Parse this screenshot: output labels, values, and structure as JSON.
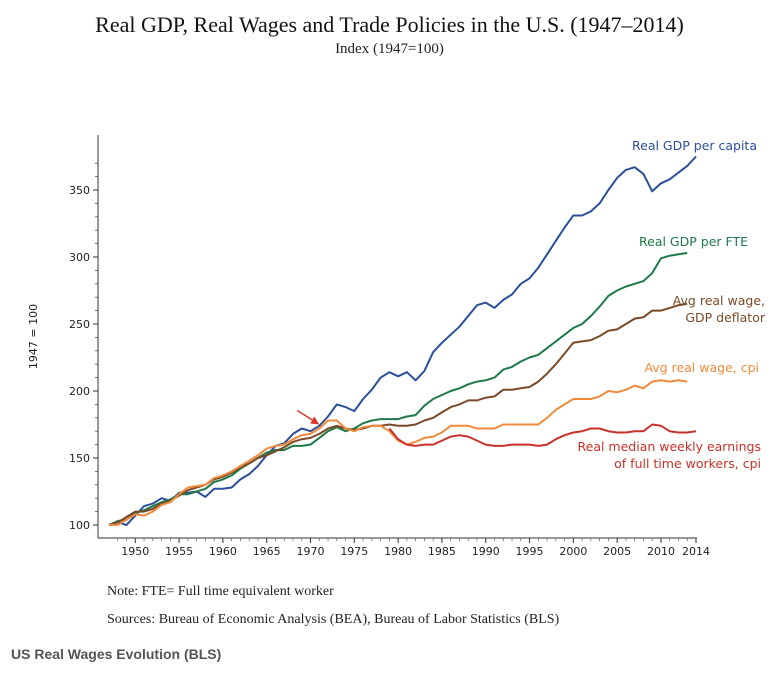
{
  "chart_data": {
    "type": "line",
    "title": "Real GDP, Real Wages and Trade Policies in the U.S. (1947–2014)",
    "subtitle": "Index (1947=100)",
    "ylabel": "1947 = 100",
    "xlim": [
      1947,
      2014
    ],
    "ylim": [
      95,
      385
    ],
    "x_ticks": [
      1950,
      1955,
      1960,
      1965,
      1970,
      1975,
      1980,
      1985,
      1990,
      1995,
      2000,
      2005,
      2010,
      2014
    ],
    "y_ticks": [
      100,
      150,
      200,
      250,
      300,
      350
    ],
    "grid": false,
    "annotation": {
      "type": "arrow",
      "x": 1971,
      "y": 175
    },
    "series": [
      {
        "name": "Real GDP per capita",
        "label_lines": [
          "Real GDP per capita"
        ],
        "color": "#2b4f9a",
        "points": [
          [
            1947,
            100
          ],
          [
            1948,
            102
          ],
          [
            1949,
            100
          ],
          [
            1950,
            107
          ],
          [
            1951,
            114
          ],
          [
            1952,
            116
          ],
          [
            1953,
            120
          ],
          [
            1954,
            118
          ],
          [
            1955,
            124
          ],
          [
            1956,
            124
          ],
          [
            1957,
            125
          ],
          [
            1958,
            121
          ],
          [
            1959,
            127
          ],
          [
            1960,
            127
          ],
          [
            1961,
            128
          ],
          [
            1962,
            134
          ],
          [
            1963,
            138
          ],
          [
            1964,
            144
          ],
          [
            1965,
            152
          ],
          [
            1966,
            159
          ],
          [
            1967,
            161
          ],
          [
            1968,
            168
          ],
          [
            1969,
            172
          ],
          [
            1970,
            170
          ],
          [
            1971,
            174
          ],
          [
            1972,
            181
          ],
          [
            1973,
            190
          ],
          [
            1974,
            188
          ],
          [
            1975,
            185
          ],
          [
            1976,
            194
          ],
          [
            1977,
            201
          ],
          [
            1978,
            210
          ],
          [
            1979,
            214
          ],
          [
            1980,
            211
          ],
          [
            1981,
            214
          ],
          [
            1982,
            208
          ],
          [
            1983,
            215
          ],
          [
            1984,
            229
          ],
          [
            1985,
            236
          ],
          [
            1986,
            242
          ],
          [
            1987,
            248
          ],
          [
            1988,
            256
          ],
          [
            1989,
            264
          ],
          [
            1990,
            266
          ],
          [
            1991,
            262
          ],
          [
            1992,
            268
          ],
          [
            1993,
            272
          ],
          [
            1994,
            280
          ],
          [
            1995,
            284
          ],
          [
            1996,
            292
          ],
          [
            1997,
            302
          ],
          [
            1998,
            312
          ],
          [
            1999,
            322
          ],
          [
            2000,
            331
          ],
          [
            2001,
            331
          ],
          [
            2002,
            334
          ],
          [
            2003,
            340
          ],
          [
            2004,
            350
          ],
          [
            2005,
            359
          ],
          [
            2006,
            365
          ],
          [
            2007,
            367
          ],
          [
            2008,
            362
          ],
          [
            2009,
            349
          ],
          [
            2010,
            355
          ],
          [
            2011,
            358
          ],
          [
            2012,
            363
          ],
          [
            2013,
            368
          ],
          [
            2014,
            375
          ]
        ]
      },
      {
        "name": "Real GDP per FTE",
        "label_lines": [
          "Real GDP per FTE"
        ],
        "color": "#1f7a4a",
        "points": [
          [
            1947,
            100
          ],
          [
            1948,
            103
          ],
          [
            1949,
            104
          ],
          [
            1950,
            109
          ],
          [
            1951,
            111
          ],
          [
            1952,
            114
          ],
          [
            1953,
            117
          ],
          [
            1954,
            119
          ],
          [
            1955,
            123
          ],
          [
            1956,
            123
          ],
          [
            1957,
            125
          ],
          [
            1958,
            127
          ],
          [
            1959,
            132
          ],
          [
            1960,
            134
          ],
          [
            1961,
            137
          ],
          [
            1962,
            142
          ],
          [
            1963,
            146
          ],
          [
            1964,
            150
          ],
          [
            1965,
            154
          ],
          [
            1966,
            156
          ],
          [
            1967,
            156
          ],
          [
            1968,
            159
          ],
          [
            1969,
            159
          ],
          [
            1970,
            160
          ],
          [
            1971,
            165
          ],
          [
            1972,
            170
          ],
          [
            1973,
            173
          ],
          [
            1974,
            170
          ],
          [
            1975,
            172
          ],
          [
            1976,
            176
          ],
          [
            1977,
            178
          ],
          [
            1978,
            179
          ],
          [
            1979,
            179
          ],
          [
            1980,
            179
          ],
          [
            1981,
            181
          ],
          [
            1982,
            182
          ],
          [
            1983,
            189
          ],
          [
            1984,
            194
          ],
          [
            1985,
            197
          ],
          [
            1986,
            200
          ],
          [
            1987,
            202
          ],
          [
            1988,
            205
          ],
          [
            1989,
            207
          ],
          [
            1990,
            208
          ],
          [
            1991,
            210
          ],
          [
            1992,
            216
          ],
          [
            1993,
            218
          ],
          [
            1994,
            222
          ],
          [
            1995,
            225
          ],
          [
            1996,
            227
          ],
          [
            1997,
            232
          ],
          [
            1998,
            237
          ],
          [
            1999,
            242
          ],
          [
            2000,
            247
          ],
          [
            2001,
            250
          ],
          [
            2002,
            256
          ],
          [
            2003,
            263
          ],
          [
            2004,
            271
          ],
          [
            2005,
            275
          ],
          [
            2006,
            278
          ],
          [
            2007,
            280
          ],
          [
            2008,
            282
          ],
          [
            2009,
            288
          ],
          [
            2010,
            299
          ],
          [
            2011,
            301
          ],
          [
            2012,
            302
          ],
          [
            2013,
            303
          ]
        ]
      },
      {
        "name": "Avg real wage, GDP deflator",
        "label_lines": [
          "Avg real wage,",
          "GDP deflator"
        ],
        "color": "#7a4a28",
        "points": [
          [
            1947,
            100
          ],
          [
            1948,
            102
          ],
          [
            1949,
            106
          ],
          [
            1950,
            110
          ],
          [
            1951,
            110
          ],
          [
            1952,
            112
          ],
          [
            1953,
            116
          ],
          [
            1954,
            118
          ],
          [
            1955,
            122
          ],
          [
            1956,
            126
          ],
          [
            1957,
            128
          ],
          [
            1958,
            130
          ],
          [
            1959,
            134
          ],
          [
            1960,
            136
          ],
          [
            1961,
            139
          ],
          [
            1962,
            143
          ],
          [
            1963,
            146
          ],
          [
            1964,
            150
          ],
          [
            1965,
            152
          ],
          [
            1966,
            155
          ],
          [
            1967,
            158
          ],
          [
            1968,
            162
          ],
          [
            1969,
            164
          ],
          [
            1970,
            165
          ],
          [
            1971,
            168
          ],
          [
            1972,
            172
          ],
          [
            1973,
            174
          ],
          [
            1974,
            172
          ],
          [
            1975,
            171
          ],
          [
            1976,
            172
          ],
          [
            1977,
            174
          ],
          [
            1978,
            174
          ],
          [
            1979,
            175
          ],
          [
            1980,
            174
          ],
          [
            1981,
            174
          ],
          [
            1982,
            175
          ],
          [
            1983,
            178
          ],
          [
            1984,
            180
          ],
          [
            1985,
            184
          ],
          [
            1986,
            188
          ],
          [
            1987,
            190
          ],
          [
            1988,
            193
          ],
          [
            1989,
            193
          ],
          [
            1990,
            195
          ],
          [
            1991,
            196
          ],
          [
            1992,
            201
          ],
          [
            1993,
            201
          ],
          [
            1994,
            202
          ],
          [
            1995,
            203
          ],
          [
            1996,
            207
          ],
          [
            1997,
            213
          ],
          [
            1998,
            220
          ],
          [
            1999,
            228
          ],
          [
            2000,
            236
          ],
          [
            2001,
            237
          ],
          [
            2002,
            238
          ],
          [
            2003,
            241
          ],
          [
            2004,
            245
          ],
          [
            2005,
            246
          ],
          [
            2006,
            250
          ],
          [
            2007,
            254
          ],
          [
            2008,
            255
          ],
          [
            2009,
            260
          ],
          [
            2010,
            260
          ],
          [
            2011,
            262
          ],
          [
            2012,
            264
          ],
          [
            2013,
            265
          ]
        ]
      },
      {
        "name": "Avg real wage, cpi",
        "label_lines": [
          "Avg real wage, cpi"
        ],
        "color": "#f08a3a",
        "points": [
          [
            1947,
            100
          ],
          [
            1948,
            100
          ],
          [
            1949,
            104
          ],
          [
            1950,
            108
          ],
          [
            1951,
            107
          ],
          [
            1952,
            110
          ],
          [
            1953,
            115
          ],
          [
            1954,
            117
          ],
          [
            1955,
            123
          ],
          [
            1956,
            128
          ],
          [
            1957,
            129
          ],
          [
            1958,
            130
          ],
          [
            1959,
            135
          ],
          [
            1960,
            137
          ],
          [
            1961,
            140
          ],
          [
            1962,
            144
          ],
          [
            1963,
            148
          ],
          [
            1964,
            152
          ],
          [
            1965,
            157
          ],
          [
            1966,
            159
          ],
          [
            1967,
            160
          ],
          [
            1968,
            164
          ],
          [
            1969,
            167
          ],
          [
            1970,
            168
          ],
          [
            1971,
            172
          ],
          [
            1972,
            178
          ],
          [
            1973,
            178
          ],
          [
            1974,
            172
          ],
          [
            1975,
            170
          ],
          [
            1976,
            173
          ],
          [
            1977,
            174
          ],
          [
            1978,
            174
          ],
          [
            1979,
            170
          ],
          [
            1980,
            163
          ],
          [
            1981,
            160
          ],
          [
            1982,
            162
          ],
          [
            1983,
            165
          ],
          [
            1984,
            166
          ],
          [
            1985,
            169
          ],
          [
            1986,
            174
          ],
          [
            1987,
            174
          ],
          [
            1988,
            174
          ],
          [
            1989,
            172
          ],
          [
            1990,
            172
          ],
          [
            1991,
            172
          ],
          [
            1992,
            175
          ],
          [
            1993,
            175
          ],
          [
            1994,
            175
          ],
          [
            1995,
            175
          ],
          [
            1996,
            175
          ],
          [
            1997,
            180
          ],
          [
            1998,
            186
          ],
          [
            1999,
            190
          ],
          [
            2000,
            194
          ],
          [
            2001,
            194
          ],
          [
            2002,
            194
          ],
          [
            2003,
            196
          ],
          [
            2004,
            200
          ],
          [
            2005,
            199
          ],
          [
            2006,
            201
          ],
          [
            2007,
            204
          ],
          [
            2008,
            202
          ],
          [
            2009,
            207
          ],
          [
            2010,
            208
          ],
          [
            2011,
            207
          ],
          [
            2012,
            208
          ],
          [
            2013,
            207
          ]
        ]
      },
      {
        "name": "Real median weekly earnings of full time workers, cpi",
        "label_lines": [
          "Real median weekly earnings",
          "of full time workers, cpi"
        ],
        "color": "#c8322a",
        "points": [
          [
            1979,
            172
          ],
          [
            1980,
            164
          ],
          [
            1981,
            160
          ],
          [
            1982,
            159
          ],
          [
            1983,
            160
          ],
          [
            1984,
            160
          ],
          [
            1985,
            163
          ],
          [
            1986,
            166
          ],
          [
            1987,
            167
          ],
          [
            1988,
            166
          ],
          [
            1989,
            163
          ],
          [
            1990,
            160
          ],
          [
            1991,
            159
          ],
          [
            1992,
            159
          ],
          [
            1993,
            160
          ],
          [
            1994,
            160
          ],
          [
            1995,
            160
          ],
          [
            1996,
            159
          ],
          [
            1997,
            160
          ],
          [
            1998,
            164
          ],
          [
            1999,
            167
          ],
          [
            2000,
            169
          ],
          [
            2001,
            170
          ],
          [
            2002,
            172
          ],
          [
            2003,
            172
          ],
          [
            2004,
            170
          ],
          [
            2005,
            169
          ],
          [
            2006,
            169
          ],
          [
            2007,
            170
          ],
          [
            2008,
            170
          ],
          [
            2009,
            175
          ],
          [
            2010,
            174
          ],
          [
            2011,
            170
          ],
          [
            2012,
            169
          ],
          [
            2013,
            169
          ],
          [
            2014,
            170
          ]
        ]
      }
    ]
  },
  "footer": {
    "note": "Note: FTE= Full time equivalent worker",
    "sources": "Sources: Bureau of Economic Analysis (BEA), Bureau of Labor Statistics (BLS)"
  },
  "caption": "US Real Wages Evolution (BLS)"
}
